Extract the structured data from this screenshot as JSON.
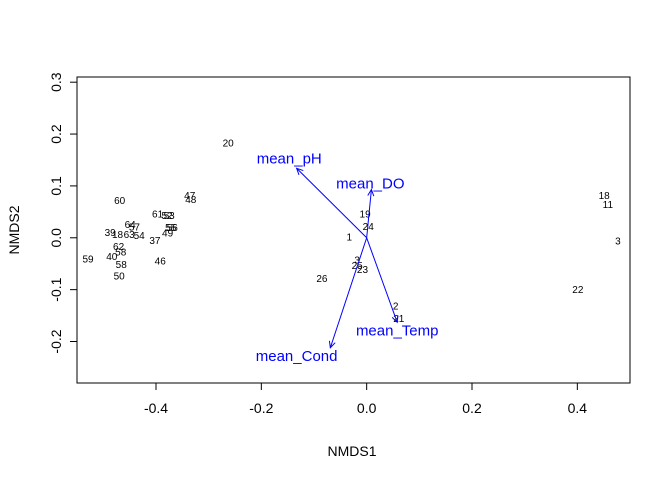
{
  "chart_data": {
    "type": "scatter",
    "title": "",
    "xlabel": "NMDS1",
    "ylabel": "NMDS2",
    "xlim": [
      -0.55,
      0.5
    ],
    "ylim": [
      -0.28,
      0.31
    ],
    "xticks": [
      -0.4,
      -0.2,
      0.0,
      0.2,
      0.4
    ],
    "xtick_labels": [
      "-0.4",
      "-0.2",
      "0.0",
      "0.2",
      "0.4"
    ],
    "yticks": [
      -0.2,
      -0.1,
      0.0,
      0.1,
      0.2,
      0.3
    ],
    "ytick_labels": [
      "-0.2",
      "-0.1",
      "0.0",
      "0.1",
      "0.2",
      "0.3"
    ],
    "grid": false,
    "site_color": "#000000",
    "vector_color": "#0000ff",
    "sites": [
      {
        "label": "20",
        "x": -0.263,
        "y": 0.181
      },
      {
        "label": "47",
        "x": -0.336,
        "y": 0.08
      },
      {
        "label": "48",
        "x": -0.334,
        "y": 0.072
      },
      {
        "label": "60",
        "x": -0.469,
        "y": 0.07
      },
      {
        "label": "61",
        "x": -0.397,
        "y": 0.044
      },
      {
        "label": "52",
        "x": -0.379,
        "y": 0.041
      },
      {
        "label": "53",
        "x": -0.375,
        "y": 0.041
      },
      {
        "label": "64",
        "x": -0.449,
        "y": 0.024
      },
      {
        "label": "57",
        "x": -0.441,
        "y": 0.019
      },
      {
        "label": "55",
        "x": -0.372,
        "y": 0.018
      },
      {
        "label": "56",
        "x": -0.369,
        "y": 0.018
      },
      {
        "label": "49",
        "x": -0.378,
        "y": 0.007
      },
      {
        "label": "39",
        "x": -0.487,
        "y": 0.008
      },
      {
        "label": "18",
        "x": -0.473,
        "y": 0.004
      },
      {
        "label": "63",
        "x": -0.451,
        "y": 0.004
      },
      {
        "label": "54",
        "x": -0.432,
        "y": 0.002
      },
      {
        "label": "37",
        "x": -0.402,
        "y": -0.007
      },
      {
        "label": "62",
        "x": -0.471,
        "y": -0.019
      },
      {
        "label": "58",
        "x": -0.467,
        "y": -0.029
      },
      {
        "label": "40",
        "x": -0.484,
        "y": -0.038
      },
      {
        "label": "59",
        "x": -0.529,
        "y": -0.043
      },
      {
        "label": "58",
        "x": -0.466,
        "y": -0.053
      },
      {
        "label": "46",
        "x": -0.392,
        "y": -0.047
      },
      {
        "label": "50",
        "x": -0.47,
        "y": -0.076
      },
      {
        "label": "19",
        "x": -0.003,
        "y": 0.044
      },
      {
        "label": "24",
        "x": 0.003,
        "y": 0.02
      },
      {
        "label": "1",
        "x": -0.033,
        "y": 0.0
      },
      {
        "label": "3",
        "x": -0.018,
        "y": -0.045
      },
      {
        "label": "25",
        "x": -0.018,
        "y": -0.055
      },
      {
        "label": "23",
        "x": -0.008,
        "y": -0.063
      },
      {
        "label": "26",
        "x": -0.085,
        "y": -0.08
      },
      {
        "label": "2",
        "x": 0.055,
        "y": -0.133
      },
      {
        "label": "21",
        "x": 0.061,
        "y": -0.158
      },
      {
        "label": "22",
        "x": 0.401,
        "y": -0.102
      },
      {
        "label": "18",
        "x": 0.451,
        "y": 0.08
      },
      {
        "label": "11",
        "x": 0.458,
        "y": 0.062
      },
      {
        "label": "3",
        "x": 0.477,
        "y": -0.008
      }
    ],
    "vectors": [
      {
        "name": "mean_pH",
        "x": -0.133,
        "y": 0.134,
        "label_x": -0.147,
        "label_y": 0.152
      },
      {
        "name": "mean_DO",
        "x": 0.009,
        "y": 0.093,
        "label_x": 0.007,
        "label_y": 0.104
      },
      {
        "name": "mean_Temp",
        "x": 0.058,
        "y": -0.163,
        "label_x": 0.058,
        "label_y": -0.18
      },
      {
        "name": "mean_Cond",
        "x": -0.069,
        "y": -0.212,
        "label_x": -0.133,
        "label_y": -0.229
      }
    ]
  }
}
